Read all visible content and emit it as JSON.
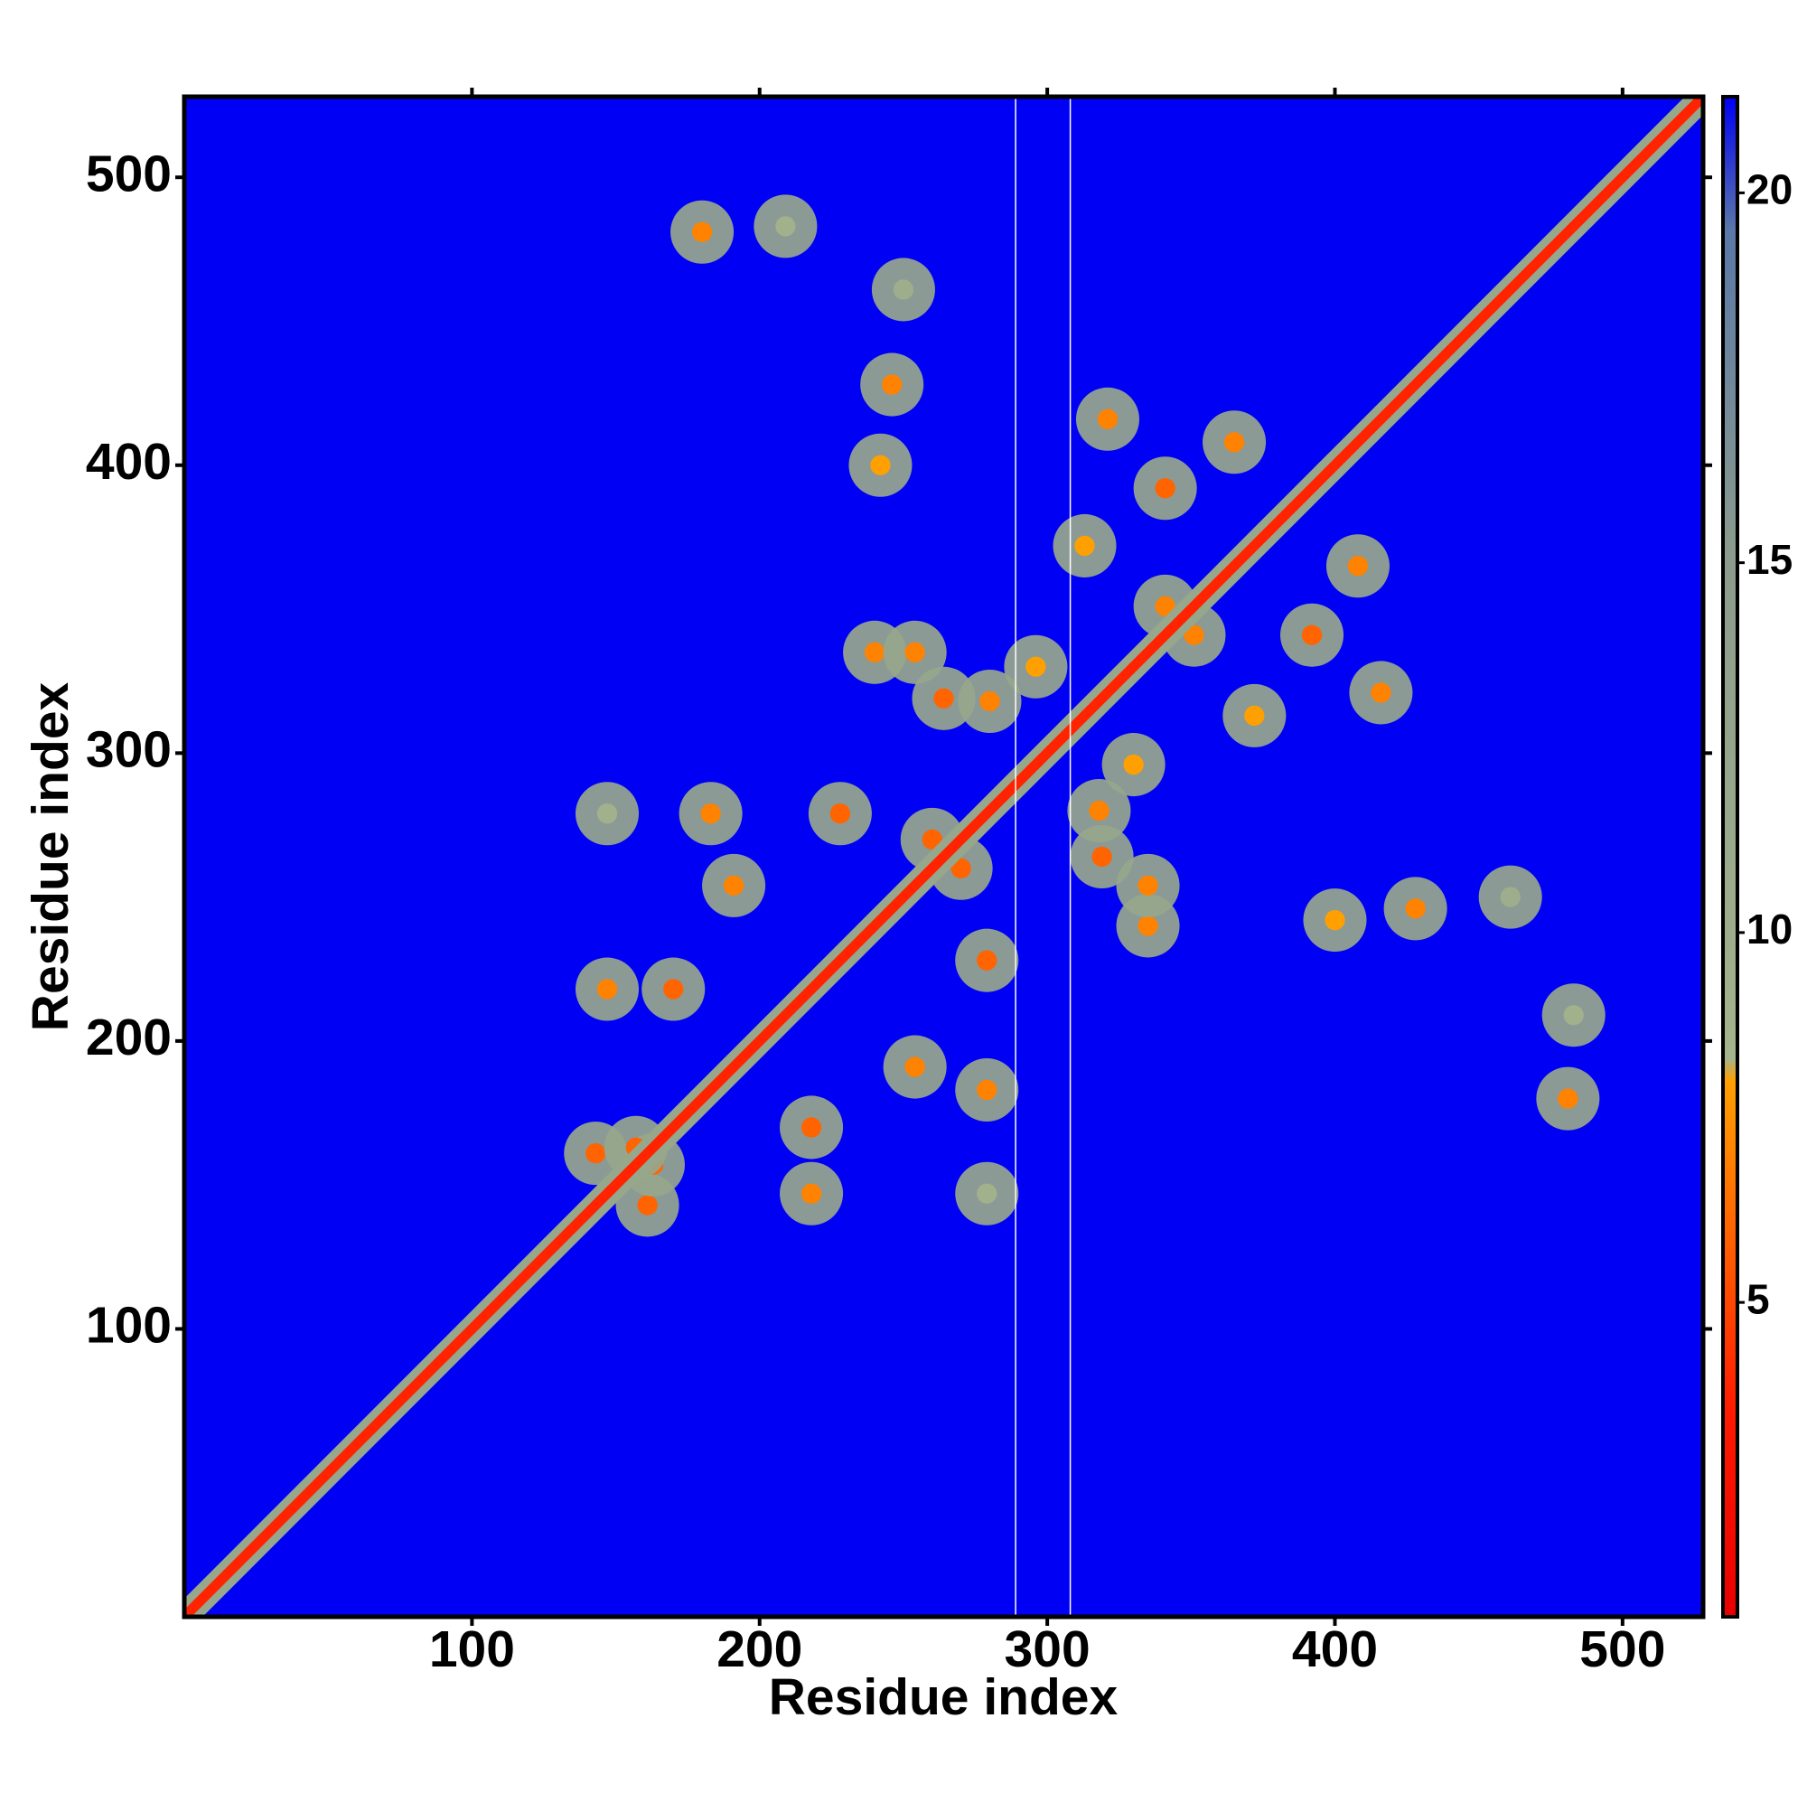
{
  "chart_data": {
    "type": "heatmap",
    "xlabel": "Residue index",
    "ylabel": "Residue index",
    "xlim": [
      0,
      528
    ],
    "ylim": [
      0,
      528
    ],
    "xticks": [
      100,
      200,
      300,
      400,
      500
    ],
    "yticks": [
      100,
      200,
      300,
      400,
      500
    ],
    "zlim": [
      0.75,
      21.3
    ],
    "zticks": [
      5,
      10,
      15,
      20
    ],
    "colorscale": [
      [
        0.75,
        "#e80000"
      ],
      [
        3.5,
        "#ff1a00"
      ],
      [
        8,
        "#ffa000"
      ],
      [
        8.3,
        "#a4b48c"
      ],
      [
        15,
        "#8c9c8c"
      ],
      [
        19.5,
        "#5a78a8"
      ],
      [
        21.3,
        "#0000f5"
      ]
    ],
    "background_value": 21.3,
    "diagonal_value": 3.8,
    "halo_value": 12,
    "gap_columns": [
      289,
      308
    ],
    "contacts": {
      "x": [
        180,
        209,
        250,
        246,
        242,
        321,
        341,
        365,
        313,
        341,
        240,
        264,
        147,
        183,
        191,
        228,
        260,
        147,
        170,
        143,
        163,
        280,
        296,
        254
      ],
      "y": [
        481,
        483,
        461,
        428,
        400,
        416,
        392,
        408,
        372,
        351,
        335,
        319,
        279,
        279,
        254,
        279,
        270,
        218,
        218,
        161,
        157,
        318,
        330,
        335
      ],
      "values": [
        7,
        9,
        10,
        7,
        8,
        7,
        6,
        7,
        8,
        7,
        7,
        6,
        9,
        7,
        7,
        6,
        6,
        7,
        6,
        6,
        6,
        7,
        8,
        7
      ]
    }
  }
}
